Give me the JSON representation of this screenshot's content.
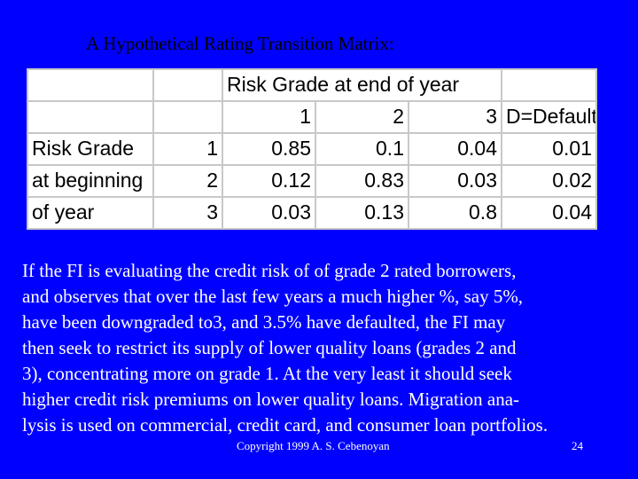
{
  "title": "A Hypothetical Rating Transition Matrix:",
  "table": {
    "header_title": "Risk Grade at end of year",
    "column_headers": [
      "1",
      "2",
      "3",
      "D=Default"
    ],
    "rows": [
      [
        "Risk Grade",
        "1",
        "0.85",
        "0.1",
        "0.04",
        "0.01"
      ],
      [
        "at beginning",
        "2",
        "0.12",
        "0.83",
        "0.03",
        "0.02"
      ],
      [
        "of year",
        "3",
        "0.03",
        "0.13",
        "0.8",
        "0.04"
      ]
    ]
  },
  "body_lines": [
    "If the FI is evaluating the credit risk of of grade 2 rated borrowers,",
    "and observes that over the last few years a much higher %, say 5%,",
    "have been downgraded to3, and 3.5% have defaulted, the FI may",
    "then seek to restrict its supply of lower quality loans (grades 2 and",
    "3), concentrating more on grade 1.   At the very least it should seek",
    "higher credit risk premiums on lower quality loans.   Migration ana-",
    "lysis is used on commercial, credit card, and consumer loan portfolios."
  ],
  "footer": {
    "copyright": "Copyright 1999 A. S. Cebenoyan",
    "page": "24"
  }
}
